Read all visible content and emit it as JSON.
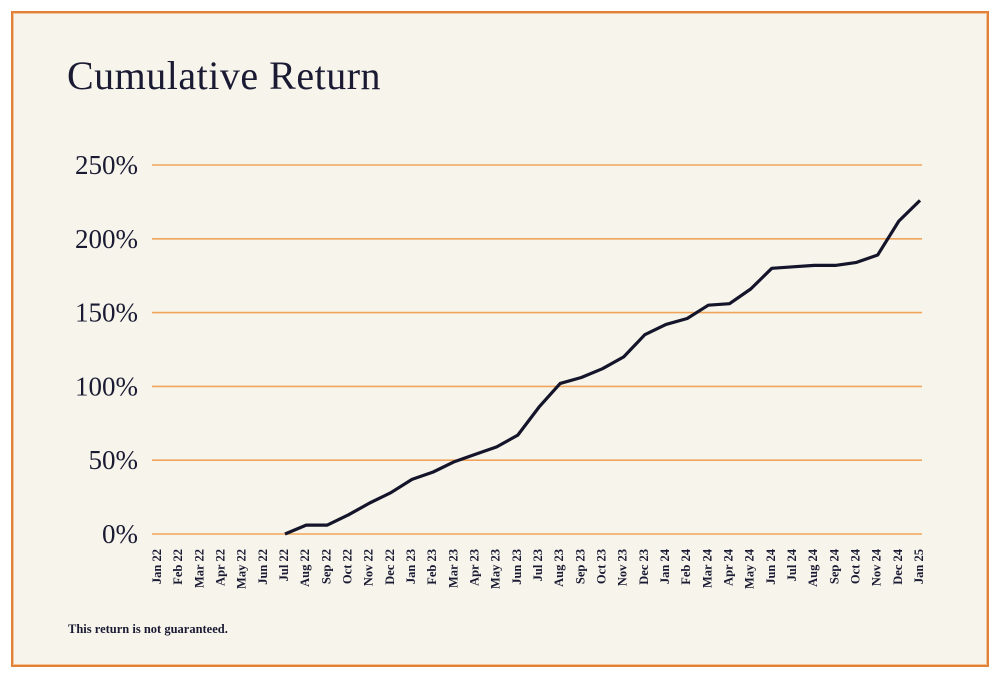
{
  "page": {
    "title": "Cumulative Return",
    "footnote": "This return is not guaranteed."
  },
  "colors": {
    "page_background": "#ffffff",
    "panel_background": "#f7f5eb",
    "panel_border": "#e0813a",
    "gridline": "#efa55b",
    "line": "#14142a",
    "text": "#1a1a33"
  },
  "chart_data": {
    "type": "line",
    "title": "Cumulative Return",
    "xlabel": "",
    "ylabel": "",
    "ylim": [
      0,
      250
    ],
    "ytick_labels": [
      "0%",
      "50%",
      "100%",
      "150%",
      "200%",
      "250%"
    ],
    "ytick_values": [
      0,
      50,
      100,
      150,
      200,
      250
    ],
    "grid": "horizontal-only",
    "legend": "none",
    "x": [
      "Jan 22",
      "Feb 22",
      "Mar 22",
      "Apr 22",
      "May 22",
      "Jun 22",
      "Jul 22",
      "Aug 22",
      "Sep 22",
      "Oct 22",
      "Nov 22",
      "Dec 22",
      "Jan 23",
      "Feb 23",
      "Mar 23",
      "Apr 23",
      "May 23",
      "Jun 23",
      "Jul 23",
      "Aug 23",
      "Sep 23",
      "Oct 23",
      "Nov 23",
      "Dec 23",
      "Jan 24",
      "Feb 24",
      "Mar 24",
      "Apr 24",
      "May 24",
      "Jun 24",
      "Jul 24",
      "Aug 24",
      "Sep 24",
      "Oct 24",
      "Nov 24",
      "Dec 24",
      "Jan 25"
    ],
    "series": [
      {
        "name": "Cumulative Return %",
        "values": [
          null,
          null,
          null,
          null,
          null,
          null,
          0,
          6,
          6,
          13,
          21,
          28,
          37,
          42,
          49,
          54,
          59,
          67,
          86,
          102,
          106,
          112,
          120,
          135,
          142,
          146,
          155,
          156,
          166,
          180,
          181,
          182,
          182,
          184,
          189,
          212,
          226
        ]
      }
    ]
  }
}
